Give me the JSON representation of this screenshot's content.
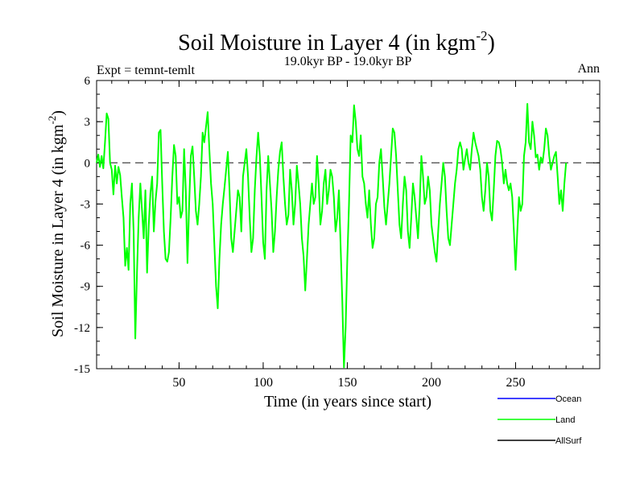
{
  "chart_data": {
    "type": "line",
    "title": "Soil Moisture in Layer 4 (in kgm",
    "title_sup": "-2",
    "title_tail": ")",
    "subtitle": "19.0kyr BP - 19.0kyr BP",
    "expt_label": "Expt = temnt-temlt",
    "season_label": "Ann",
    "xlabel": "Time (in years since start)",
    "ylabel": "Soil Moisture in Layer 4 (in kgm",
    "ylabel_sup": "-2",
    "ylabel_tail": ")",
    "xlim": [
      1,
      300
    ],
    "ylim": [
      -15,
      6
    ],
    "xticks": [
      50,
      100,
      150,
      200,
      250
    ],
    "yticks": [
      6,
      3,
      0,
      -3,
      -6,
      -9,
      -12,
      -15
    ],
    "zero_line": 0,
    "legend": [
      {
        "name": "Ocean",
        "color": "#0000ff"
      },
      {
        "name": "Land",
        "color": "#00ff00"
      },
      {
        "name": "AllSurf",
        "color": "#000000"
      }
    ],
    "series": [
      {
        "name": "Land",
        "color": "#00ff00",
        "x_start": 1,
        "x_step": 1,
        "values": [
          0,
          0.6,
          -0.3,
          0.5,
          -0.4,
          1.5,
          3.6,
          3.2,
          0,
          -0.5,
          -2.3,
          -0.2,
          -1.5,
          -0.3,
          -0.9,
          -2.5,
          -4,
          -7.5,
          -6.2,
          -7.8,
          -3,
          -1.5,
          -5,
          -12.8,
          -8,
          -4,
          -1.5,
          -3.5,
          -5.5,
          -2,
          -8,
          -4.5,
          -2.2,
          -1,
          -5,
          -2.8,
          -1.5,
          2.2,
          2.4,
          -1.5,
          -5,
          -7,
          -7.2,
          -6.5,
          -4,
          -1,
          1.3,
          0.5,
          -3,
          -2.5,
          -4,
          -3.5,
          1,
          -2,
          -7.3,
          -3,
          0.5,
          1.2,
          -1,
          -3.5,
          -4.5,
          -3,
          -1,
          2.2,
          1.5,
          2.6,
          3.7,
          1,
          -1.5,
          -3,
          -6,
          -9,
          -10.6,
          -7,
          -4.5,
          -3,
          -1.8,
          -0.5,
          0.8,
          -2,
          -5.5,
          -6.5,
          -5,
          -3.5,
          -2,
          -2.5,
          -5,
          -1,
          0,
          1,
          -1,
          -4,
          -6.5,
          -5.5,
          -2,
          0.4,
          2.2,
          0.5,
          -2.5,
          -5.8,
          -7,
          -2,
          0.5,
          -1.5,
          -3.5,
          -6.5,
          -5,
          -2.5,
          -0.5,
          0.8,
          1.5,
          -1,
          -3,
          -4.5,
          -3.8,
          -0.5,
          -2,
          -4.5,
          -3,
          -0.2,
          -1.5,
          -3,
          -5.5,
          -6.8,
          -9.3,
          -7,
          -4.5,
          -3,
          -1.5,
          -3,
          -2.5,
          0.5,
          -1.5,
          -4.5,
          -3.5,
          -1.5,
          -0.5,
          -3,
          -2,
          -0.5,
          -1,
          -2.5,
          -5,
          -4,
          -2,
          -6,
          -10,
          -14.9,
          -12,
          -7,
          -3,
          2,
          1.5,
          4.2,
          3,
          1,
          0.5,
          2,
          -1,
          -1.5,
          -3,
          -4,
          -2,
          -4.5,
          -6.2,
          -5.5,
          -3,
          -2.5,
          0,
          1,
          -1,
          -3.2,
          -4.5,
          -3,
          -1.5,
          0.5,
          2.5,
          2.2,
          0.5,
          -2,
          -4.5,
          -5.5,
          -3,
          -1,
          -2,
          -5,
          -6.2,
          -4,
          -1.5,
          -2.5,
          -4,
          -5.5,
          -3,
          0.5,
          -1,
          -3,
          -2.5,
          -1,
          -2,
          -4.5,
          -5.5,
          -6.5,
          -7.2,
          -5,
          -3,
          -1.5,
          0,
          -1,
          -3.5,
          -5.5,
          -6,
          -4.5,
          -3,
          -1.5,
          -0.5,
          1,
          1.5,
          1,
          -0.5,
          0.3,
          1,
          0,
          -0.5,
          1,
          2.2,
          1.5,
          1,
          0.5,
          -0.5,
          -2.5,
          -3.5,
          -2,
          0,
          -1,
          -3.5,
          -4.2,
          -2,
          0.5,
          1.6,
          1.5,
          1,
          0,
          -1.5,
          -0.5,
          -1.5,
          -2,
          -1.5,
          -2.5,
          -5,
          -7.8,
          -5,
          -2.5,
          -3.5,
          -3,
          0.5,
          1.5,
          4.3,
          1.5,
          1,
          3,
          2,
          0.4,
          0.6,
          -0.5,
          0.4,
          0,
          1,
          2.5,
          2,
          0.5,
          -0.5,
          0,
          0.5,
          0.8,
          -1,
          -3,
          -2,
          -3.5,
          -1.5,
          0
        ]
      }
    ]
  }
}
